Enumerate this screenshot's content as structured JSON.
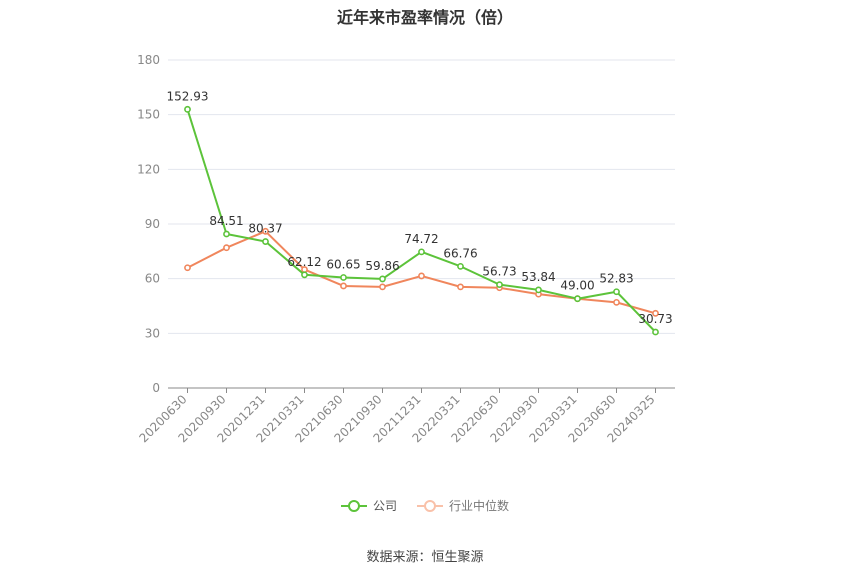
{
  "chart_data": {
    "type": "line",
    "title": "近年来市盈率情况（倍）",
    "categories": [
      "20200630",
      "20200930",
      "20201231",
      "20210331",
      "20210630",
      "20210930",
      "20211231",
      "20220331",
      "20220630",
      "20220930",
      "20230331",
      "20230630",
      "20240325"
    ],
    "series": [
      {
        "name": "公司",
        "color": "#5cc33a",
        "values": [
          152.93,
          84.51,
          80.37,
          62.12,
          60.65,
          59.86,
          74.72,
          66.76,
          56.73,
          53.84,
          49.0,
          52.83,
          30.73
        ],
        "labels": [
          "152.93",
          "84.51",
          "80.37",
          "62.12",
          "60.65",
          "59.86",
          "74.72",
          "66.76",
          "56.73",
          "53.84",
          "49.00",
          "52.83",
          "30.73"
        ]
      },
      {
        "name": "行业中位数",
        "color": "#f0865c",
        "values": [
          66.0,
          77.0,
          86.0,
          65.0,
          56.0,
          55.5,
          61.5,
          55.5,
          55.0,
          51.5,
          49.0,
          47.0,
          41.0
        ]
      }
    ],
    "ylim": [
      0,
      180
    ],
    "yticks": [
      0,
      30,
      60,
      90,
      120,
      150,
      180
    ],
    "grid": true,
    "legend": "bottom-center"
  },
  "legend_items": [
    "公司",
    "行业中位数"
  ],
  "source": "数据来源：恒生聚源"
}
